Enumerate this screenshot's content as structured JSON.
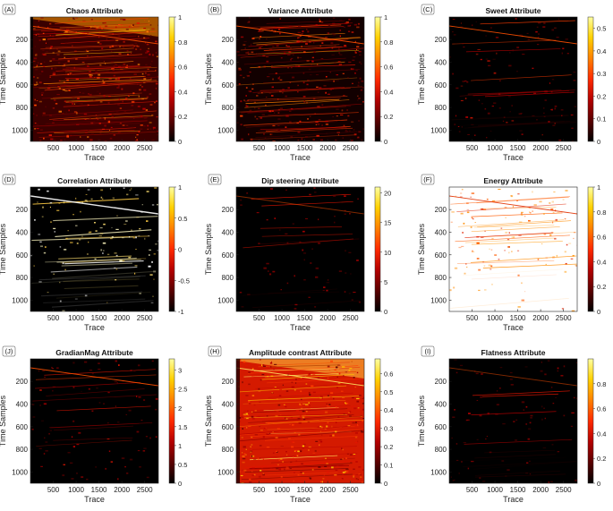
{
  "colors": {
    "colormap": [
      "#000000",
      "#5a0000",
      "#b40000",
      "#ff2a00",
      "#ff8000",
      "#ffd000",
      "#ffffa0"
    ]
  },
  "chart_data": [
    {
      "tag": "(A)",
      "title": "Chaos Attribute",
      "type": "heatmap",
      "xlabel": "Trace",
      "ylabel": "Time Samples",
      "xticks": [
        500,
        1000,
        1500,
        2000,
        2500
      ],
      "yticks": [
        200,
        400,
        600,
        800,
        1000
      ],
      "xlim": [
        1,
        2800
      ],
      "ylim": [
        1,
        1100
      ],
      "clim": [
        0,
        1
      ],
      "colorbar_ticks": [
        "0",
        "0.2",
        "0.4",
        "0.6",
        "0.8",
        "1"
      ]
    },
    {
      "tag": "(B)",
      "title": "Variance Attribute",
      "type": "heatmap",
      "xlabel": "Trace",
      "ylabel": "Time Samples",
      "xticks": [
        500,
        1000,
        1500,
        2000,
        2500
      ],
      "yticks": [
        200,
        400,
        600,
        800,
        1000
      ],
      "xlim": [
        1,
        2800
      ],
      "ylim": [
        1,
        1100
      ],
      "clim": [
        0,
        1
      ],
      "colorbar_ticks": [
        "0",
        "0.2",
        "0.4",
        "0.6",
        "0.8",
        "1"
      ]
    },
    {
      "tag": "(C)",
      "title": "Sweet Attribute",
      "type": "heatmap",
      "xlabel": "Trace",
      "ylabel": "Time Samples",
      "xticks": [
        500,
        1000,
        1500,
        2000,
        2500
      ],
      "yticks": [
        200,
        400,
        600,
        800,
        1000
      ],
      "xlim": [
        1,
        2800
      ],
      "ylim": [
        1,
        1100
      ],
      "clim": [
        0,
        0.55
      ],
      "colorbar_ticks": [
        "0",
        "0.1",
        "0.2",
        "0.3",
        "0.4",
        "0.5"
      ]
    },
    {
      "tag": "(D)",
      "title": "Correlation Attribute",
      "type": "heatmap",
      "xlabel": "Trace",
      "ylabel": "Time Samples",
      "xticks": [
        500,
        1000,
        1500,
        2000,
        2500
      ],
      "yticks": [
        200,
        400,
        600,
        800,
        1000
      ],
      "xlim": [
        1,
        2800
      ],
      "ylim": [
        1,
        1100
      ],
      "clim": [
        -1,
        1
      ],
      "colorbar_ticks": [
        "-1",
        "-0.5",
        "0",
        "0.5",
        "1"
      ]
    },
    {
      "tag": "(E)",
      "title": "Dip steering Attribute",
      "type": "heatmap",
      "xlabel": "Trace",
      "ylabel": "Time Samples",
      "xticks": [
        500,
        1000,
        1500,
        2000,
        2500
      ],
      "yticks": [
        200,
        400,
        600,
        800,
        1000
      ],
      "xlim": [
        1,
        2800
      ],
      "ylim": [
        1,
        1100
      ],
      "clim": [
        0,
        21
      ],
      "colorbar_ticks": [
        "0",
        "5",
        "10",
        "15",
        "20"
      ]
    },
    {
      "tag": "(F)",
      "title": "Energy Attribute",
      "type": "heatmap",
      "xlabel": "Trace",
      "ylabel": "Time Samples",
      "xticks": [
        500,
        1000,
        1500,
        2000,
        2500
      ],
      "yticks": [
        200,
        400,
        600,
        800,
        1000
      ],
      "xlim": [
        1,
        2800
      ],
      "ylim": [
        1,
        1100
      ],
      "clim": [
        0,
        1
      ],
      "colorbar_ticks": [
        "0",
        "0.2",
        "0.4",
        "0.6",
        "0.8",
        "1"
      ]
    },
    {
      "tag": "(J)",
      "title": "GradianMag Attribute",
      "type": "heatmap",
      "xlabel": "Trace",
      "ylabel": "Time Samples",
      "xticks": [
        500,
        1000,
        1500,
        2000,
        2500
      ],
      "yticks": [
        200,
        400,
        600,
        800,
        1000
      ],
      "xlim": [
        1,
        2800
      ],
      "ylim": [
        1,
        1100
      ],
      "clim": [
        0,
        3.3
      ],
      "colorbar_ticks": [
        "0",
        "0.5",
        "1",
        "1.5",
        "2",
        "2.5",
        "3"
      ]
    },
    {
      "tag": "(H)",
      "title": "Amplitude contrast Attribute",
      "type": "heatmap",
      "xlabel": "Trace",
      "ylabel": "Time Samples",
      "xticks": [
        500,
        1000,
        1500,
        2000,
        2500
      ],
      "yticks": [
        200,
        400,
        600,
        800,
        1000
      ],
      "xlim": [
        1,
        2800
      ],
      "ylim": [
        1,
        1100
      ],
      "clim": [
        0,
        0.68
      ],
      "colorbar_ticks": [
        "0",
        "0.1",
        "0.2",
        "0.3",
        "0.4",
        "0.5",
        "0.6"
      ]
    },
    {
      "tag": "(I)",
      "title": "Flatness Attribute",
      "type": "heatmap",
      "xlabel": "Trace",
      "ylabel": "Time Samples",
      "xticks": [
        500,
        1000,
        1500,
        2000,
        2500
      ],
      "yticks": [
        200,
        400,
        600,
        800,
        1000
      ],
      "xlim": [
        1,
        2800
      ],
      "ylim": [
        1,
        1100
      ],
      "clim": [
        0,
        1
      ],
      "colorbar_ticks": [
        "0",
        "0.2",
        "0.4",
        "0.6",
        "0.8"
      ]
    }
  ]
}
